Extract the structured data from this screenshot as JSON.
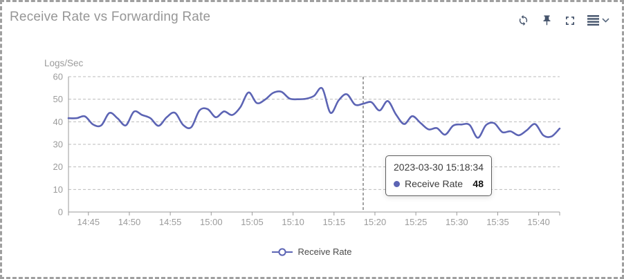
{
  "panel": {
    "title": "Receive Rate vs Forwarding Rate"
  },
  "toolbar": {
    "icons": [
      "refresh-icon",
      "pin-icon",
      "fullscreen-icon",
      "menu-icon",
      "chevron-down-icon"
    ]
  },
  "tooltip": {
    "timestamp": "2023-03-30 15:18:34",
    "series": "Receive Rate",
    "value": "48"
  },
  "legend": {
    "label": "Receive Rate"
  },
  "colors": {
    "series": "#5c64b4",
    "title_text": "#969696",
    "axis_text": "#9b9b9b",
    "axis_line": "#999999",
    "grid": "#bbbbbb",
    "crosshair": "#444444",
    "icon": "#44536b",
    "panel_border": "#9f9f9f",
    "tooltip_border": "#5c5c5c"
  },
  "chart_data": {
    "type": "line",
    "title": "",
    "xlabel": "",
    "ylabel": "Logs/Sec",
    "ylim": [
      0,
      60
    ],
    "yticks": [
      0,
      10,
      20,
      30,
      40,
      50,
      60
    ],
    "xticks": [
      "14:45",
      "14:50",
      "14:55",
      "15:00",
      "15:05",
      "15:10",
      "15:15",
      "15:20",
      "15:25",
      "15:30",
      "15:35",
      "15:40"
    ],
    "grid": true,
    "grid_style": "dashed",
    "legend_position": "bottom",
    "crosshair_time": "15:18:34",
    "series": [
      {
        "name": "Receive Rate",
        "times": [
          "14:42:34",
          "14:43:34",
          "14:44:34",
          "14:45:34",
          "14:46:34",
          "14:47:34",
          "14:48:34",
          "14:49:34",
          "14:50:34",
          "14:51:34",
          "14:52:34",
          "14:53:34",
          "14:54:34",
          "14:55:34",
          "14:56:34",
          "14:57:34",
          "14:58:34",
          "14:59:34",
          "15:00:34",
          "15:01:34",
          "15:02:34",
          "15:03:34",
          "15:04:34",
          "15:05:34",
          "15:06:34",
          "15:07:34",
          "15:08:34",
          "15:09:34",
          "15:10:34",
          "15:11:34",
          "15:12:34",
          "15:13:34",
          "15:14:34",
          "15:15:34",
          "15:16:34",
          "15:17:34",
          "15:18:34",
          "15:19:34",
          "15:20:34",
          "15:21:34",
          "15:22:34",
          "15:23:34",
          "15:24:34",
          "15:25:34",
          "15:26:34",
          "15:27:34",
          "15:28:34",
          "15:29:34",
          "15:30:34",
          "15:31:34",
          "15:32:34",
          "15:33:34",
          "15:34:34",
          "15:35:34",
          "15:36:34",
          "15:37:34",
          "15:38:34",
          "15:39:34",
          "15:40:34",
          "15:41:34",
          "15:42:34"
        ],
        "values": [
          41.6,
          41.6,
          42.4,
          38.8,
          38.4,
          43.9,
          41.5,
          38.4,
          44.5,
          43.0,
          41.6,
          38.2,
          42.0,
          44.0,
          38.6,
          37.6,
          45.0,
          45.6,
          42.0,
          44.6,
          43.0,
          46.5,
          53.0,
          48.3,
          49.8,
          52.8,
          53.3,
          50.3,
          50.0,
          50.2,
          51.5,
          54.8,
          44.0,
          49.5,
          52.2,
          47.6,
          48.0,
          48.7,
          45.0,
          49.2,
          43.3,
          39.0,
          42.5,
          39.5,
          36.6,
          37.2,
          34.3,
          38.3,
          38.8,
          38.6,
          32.9,
          38.5,
          39.4,
          35.4,
          35.8,
          34.0,
          36.3,
          39.0,
          34.0,
          33.5,
          37.0
        ]
      }
    ]
  }
}
